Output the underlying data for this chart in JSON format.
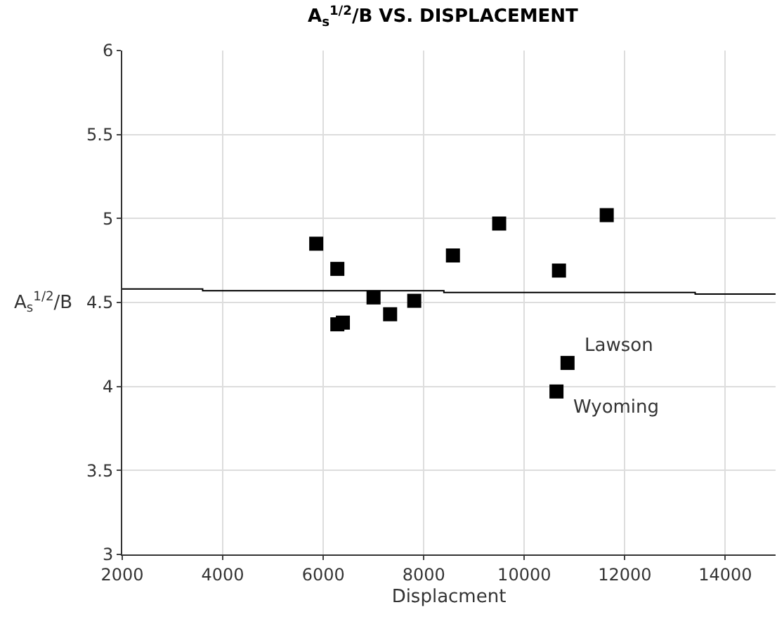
{
  "chart_data": {
    "type": "scatter",
    "title": "A$_{s}$$^{1/2}$/B VS. DISPLACEMENT",
    "xlabel": "Displacment",
    "ylabel": "A$_{s}$$^{1/2}$/B",
    "series": [
      {
        "color": "#000000",
        "marker": "square",
        "x": [
          5860,
          6280,
          6280,
          6390,
          7000,
          7330,
          7810,
          8580,
          9500,
          10690,
          11640,
          10860,
          10640
        ],
        "values": [
          4.85,
          4.7,
          4.37,
          4.38,
          4.53,
          4.43,
          4.51,
          4.78,
          4.97,
          4.69,
          5.02,
          4.14,
          3.97
        ]
      },
      {
        "type": "line",
        "color": "#000000",
        "marker": "none",
        "x": [
          2000,
          3600,
          3600,
          8400,
          8400,
          13400,
          13400,
          15000
        ],
        "values": [
          4.58,
          4.58,
          4.57,
          4.57,
          4.56,
          4.56,
          4.55,
          4.55
        ]
      }
    ],
    "annotations": [
      {
        "text": "Lawson",
        "x": 10860,
        "y": 4.14
      },
      {
        "text": "Wyoming",
        "x": 10640,
        "y": 3.97
      }
    ],
    "xlim": [
      2000,
      15000
    ],
    "xticks": [
      2000,
      4000,
      6000,
      8000,
      10000,
      12000,
      14000
    ],
    "ylim": [
      3,
      6
    ],
    "yticks": [
      3,
      3.5,
      4,
      4.5,
      5,
      5.5,
      6
    ],
    "grid": true
  }
}
